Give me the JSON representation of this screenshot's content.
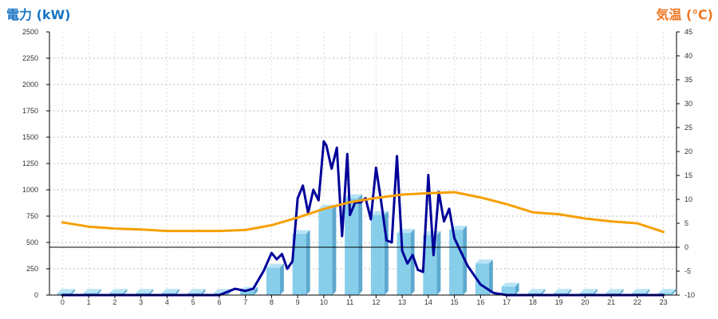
{
  "chart_data": {
    "type": "bar",
    "title": "",
    "left_axis_title": "電力 (kW)",
    "right_axis_title": "気温 (℃)",
    "categories": [
      "0",
      "1",
      "2",
      "3",
      "4",
      "5",
      "6",
      "7",
      "8",
      "9",
      "10",
      "11",
      "12",
      "13",
      "14",
      "15",
      "16",
      "17",
      "18",
      "19",
      "20",
      "21",
      "22",
      "23"
    ],
    "left_axis": {
      "min": 0,
      "max": 2500,
      "ticks": [
        "0",
        "250",
        "500",
        "750",
        "1000",
        "1250",
        "1500",
        "1750",
        "2000",
        "2250",
        "2500"
      ]
    },
    "right_axis": {
      "min": -10,
      "max": 45,
      "ticks": [
        "-10",
        "-5",
        "0",
        "5",
        "10",
        "15",
        "20",
        "25",
        "30",
        "35",
        "40",
        "45"
      ]
    },
    "grid": true,
    "zero_reference": 0,
    "series": [
      {
        "kind": "bar",
        "axis": "left",
        "values": [
          20,
          20,
          20,
          20,
          20,
          20,
          20,
          40,
          260,
          580,
          820,
          920,
          760,
          590,
          570,
          620,
          300,
          80,
          20,
          20,
          20,
          20,
          20,
          20
        ],
        "color": "#87ceeb"
      },
      {
        "kind": "line",
        "axis": "left",
        "x": [
          0,
          1,
          2,
          3,
          4,
          5,
          6,
          6.6,
          7,
          7.3,
          7.7,
          8,
          8.2,
          8.4,
          8.6,
          8.8,
          9,
          9.2,
          9.4,
          9.6,
          9.8,
          10,
          10.1,
          10.3,
          10.5,
          10.7,
          10.9,
          11,
          11.2,
          11.4,
          11.6,
          11.8,
          12,
          12.2,
          12.4,
          12.6,
          12.8,
          13,
          13.2,
          13.4,
          13.6,
          13.8,
          14,
          14.2,
          14.4,
          14.6,
          14.8,
          15,
          15.5,
          16,
          16.5,
          17,
          17.5,
          18,
          19,
          20,
          21,
          22,
          23
        ],
        "values": [
          0,
          0,
          0,
          0,
          0,
          0,
          0,
          60,
          40,
          60,
          230,
          400,
          340,
          390,
          250,
          320,
          920,
          1040,
          780,
          1000,
          900,
          1460,
          1420,
          1200,
          1400,
          560,
          1340,
          760,
          880,
          880,
          920,
          720,
          1210,
          880,
          520,
          500,
          1320,
          420,
          300,
          380,
          240,
          220,
          1140,
          380,
          980,
          700,
          820,
          540,
          280,
          100,
          20,
          0,
          0,
          0,
          0,
          0,
          0,
          0,
          0
        ],
        "color": "#000099"
      },
      {
        "kind": "line",
        "axis": "right",
        "x": [
          0,
          1,
          2,
          3,
          4,
          5,
          6,
          7,
          8,
          9,
          10,
          11,
          12,
          13,
          14,
          15,
          16,
          17,
          18,
          19,
          20,
          21,
          22,
          23
        ],
        "values": [
          5.2,
          4.3,
          3.9,
          3.7,
          3.4,
          3.4,
          3.4,
          3.6,
          4.6,
          6.2,
          8.0,
          9.4,
          10.3,
          11.0,
          11.3,
          11.5,
          10.4,
          9.0,
          7.3,
          6.9,
          6.0,
          5.4,
          5.0,
          3.2
        ],
        "color": "#f5a000"
      }
    ],
    "colors": {
      "left_title": "#1a75c4",
      "right_title": "#ee7722",
      "grid": "#bbbbbb",
      "axis": "#000000"
    }
  }
}
